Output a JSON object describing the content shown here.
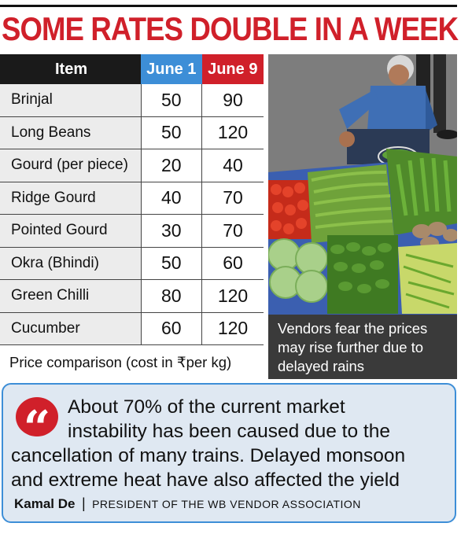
{
  "headline": "SOME RATES DOUBLE IN A WEEK",
  "table": {
    "headers": {
      "item": "Item",
      "col1": "June 1",
      "col2": "June 9"
    },
    "rows": [
      {
        "item": "Brinjal",
        "june1": "50",
        "june9": "90"
      },
      {
        "item": "Long Beans",
        "june1": "50",
        "june9": "120"
      },
      {
        "item": "Gourd (per piece)",
        "june1": "20",
        "june9": "40"
      },
      {
        "item": "Ridge Gourd",
        "june1": "40",
        "june9": "70"
      },
      {
        "item": "Pointed Gourd",
        "june1": "30",
        "june9": "70"
      },
      {
        "item": "Okra (Bhindi)",
        "june1": "50",
        "june9": "60"
      },
      {
        "item": "Green Chilli",
        "june1": "80",
        "june9": "120"
      },
      {
        "item": "Cucumber",
        "june1": "60",
        "june9": "120"
      }
    ],
    "caption": "Price comparison (cost in ₹per kg)"
  },
  "photo": {
    "caption": "Vendors fear the prices may rise further due to delayed rains"
  },
  "quote": {
    "lines": [
      "About 70% of the current market",
      "instability has been caused due to the",
      "cancellation of many trains. Delayed monsoon",
      "and extreme heat have also affected the yield"
    ],
    "name": "Kamal De",
    "separator": "|",
    "role": "PRESIDENT OF THE WB VENDOR ASSOCIATION"
  },
  "colors": {
    "accent_red": "#d0202a",
    "accent_blue": "#3d8ed7",
    "quote_bg": "#dfe8f2"
  },
  "icons": [
    "quote-marks-icon"
  ]
}
